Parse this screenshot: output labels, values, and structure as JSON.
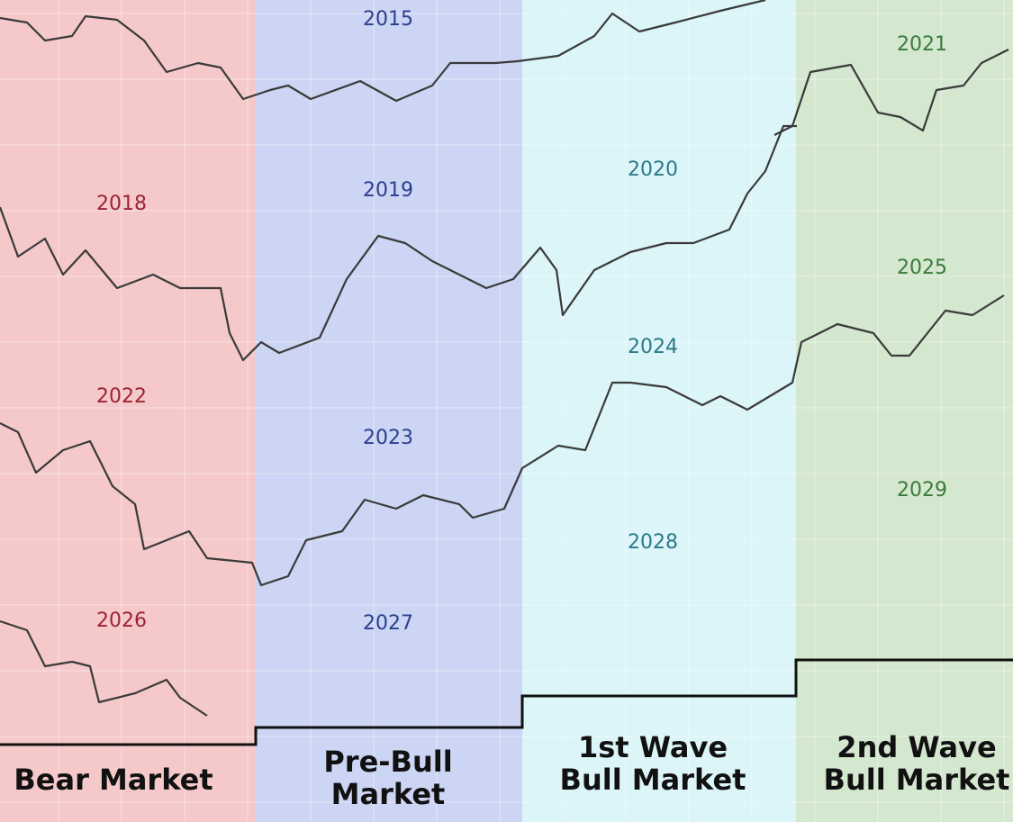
{
  "columns": [
    {
      "label": [
        "Bear Market"
      ],
      "years": [
        "2018",
        "2022",
        "2026"
      ]
    },
    {
      "label": [
        "Pre-Bull",
        "Market"
      ],
      "years": [
        "2015",
        "2019",
        "2023",
        "2027"
      ]
    },
    {
      "label": [
        "1st Wave",
        "Bull Market"
      ],
      "years": [
        "2020",
        "2024",
        "2028"
      ]
    },
    {
      "label": [
        "2nd Wave",
        "Bull Market"
      ],
      "years": [
        "2021",
        "2025",
        "2029"
      ]
    }
  ]
}
